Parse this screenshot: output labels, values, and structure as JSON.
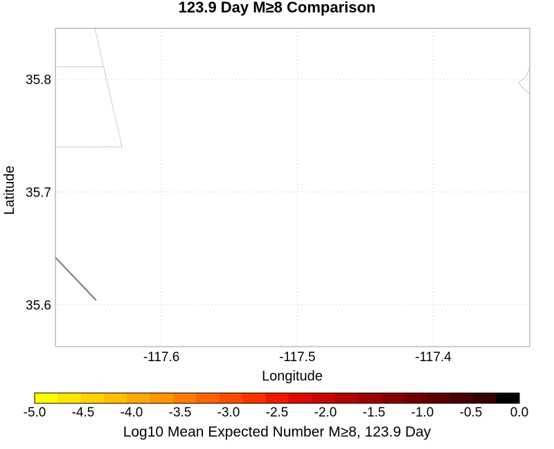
{
  "title": "123.9 Day M≥8 Comparison",
  "map": {
    "xlabel": "Longitude",
    "ylabel": "Latitude",
    "x_ticks": [
      "-117.6",
      "-117.5",
      "-117.4"
    ],
    "y_ticks": [
      "35.8",
      "35.7",
      "35.6"
    ],
    "lon_range": [
      -117.678,
      -117.329
    ],
    "lat_range": [
      35.563,
      35.845
    ],
    "tick_lons": [
      -117.6,
      -117.5,
      -117.4
    ],
    "tick_lats": [
      35.8,
      35.7,
      35.6
    ],
    "features": {
      "dotted_boundaries": [
        [
          [
            -117.649,
            35.845
          ],
          [
            -117.629,
            35.74
          ]
        ],
        [
          [
            -117.678,
            35.74
          ],
          [
            -117.629,
            35.74
          ]
        ],
        [
          [
            -117.678,
            35.811
          ],
          [
            -117.643,
            35.811
          ]
        ],
        [
          [
            -117.329,
            35.81
          ],
          [
            -117.332,
            35.802
          ],
          [
            -117.337,
            35.797
          ],
          [
            -117.334,
            35.792
          ],
          [
            -117.329,
            35.787
          ]
        ],
        [
          [
            -117.329,
            35.845
          ],
          [
            -117.329,
            35.81
          ]
        ]
      ],
      "solid_lines": [
        [
          [
            -117.678,
            35.642
          ],
          [
            -117.648,
            35.604
          ]
        ]
      ]
    }
  },
  "colorbar": {
    "label": "Log10 Mean Expected Number M≥8, 123.9 Day",
    "min": -5.0,
    "max": 0.0,
    "tick_labels": [
      "-5.0",
      "-4.5",
      "-4.0",
      "-3.5",
      "-3.0",
      "-2.5",
      "-2.0",
      "-1.5",
      "-1.0",
      "-0.5",
      "0.0"
    ],
    "tick_values": [
      -5.0,
      -4.5,
      -4.0,
      -3.5,
      -3.0,
      -2.5,
      -2.0,
      -1.5,
      -1.0,
      -0.5,
      0.0
    ],
    "colors": [
      "#ffff00",
      "#ffe800",
      "#ffd200",
      "#ffbe00",
      "#ffa800",
      "#ff9600",
      "#ff7c00",
      "#ff6400",
      "#ff4c00",
      "#fe3200",
      "#ee1a00",
      "#dc0a00",
      "#c80600",
      "#b20400",
      "#9c0200",
      "#860000",
      "#700000",
      "#5a0000",
      "#460000",
      "#320000",
      "#000000"
    ]
  }
}
